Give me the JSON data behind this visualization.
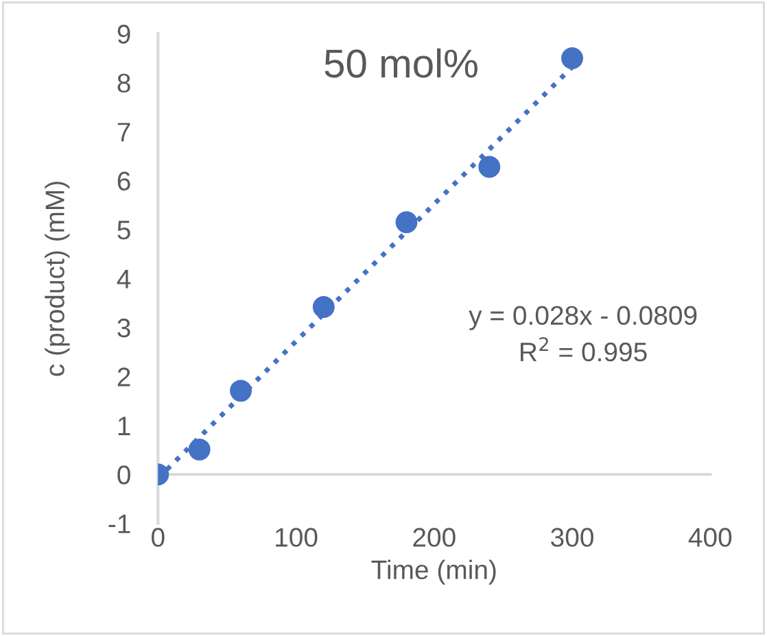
{
  "chart_data": {
    "type": "scatter",
    "title": "50 mol%",
    "xlabel": "Time (min)",
    "ylabel": "c (product) (mM)",
    "series": [
      {
        "color": "#4472c4",
        "marker": "circle",
        "x": [
          0,
          30,
          60,
          120,
          180,
          240,
          300
        ],
        "values": [
          0,
          0.51,
          1.71,
          3.42,
          5.15,
          6.28,
          8.5
        ]
      },
      {
        "type": "line",
        "color": "#4472c4",
        "line_style": "dotted",
        "marker": "none",
        "x": [
          0,
          300
        ],
        "values": [
          -0.08,
          8.32
        ]
      }
    ],
    "annotations": [
      "y = 0.028x - 0.0809",
      "R$^{2}$ = 0.995"
    ],
    "xlim": [
      0,
      400
    ],
    "xticks": [
      0,
      100,
      200,
      300,
      400
    ],
    "ylim": [
      -1,
      9
    ],
    "yticks": [
      -1,
      0,
      1,
      2,
      3,
      4,
      5,
      6,
      7,
      8,
      9
    ],
    "grid": false,
    "legend": false
  }
}
